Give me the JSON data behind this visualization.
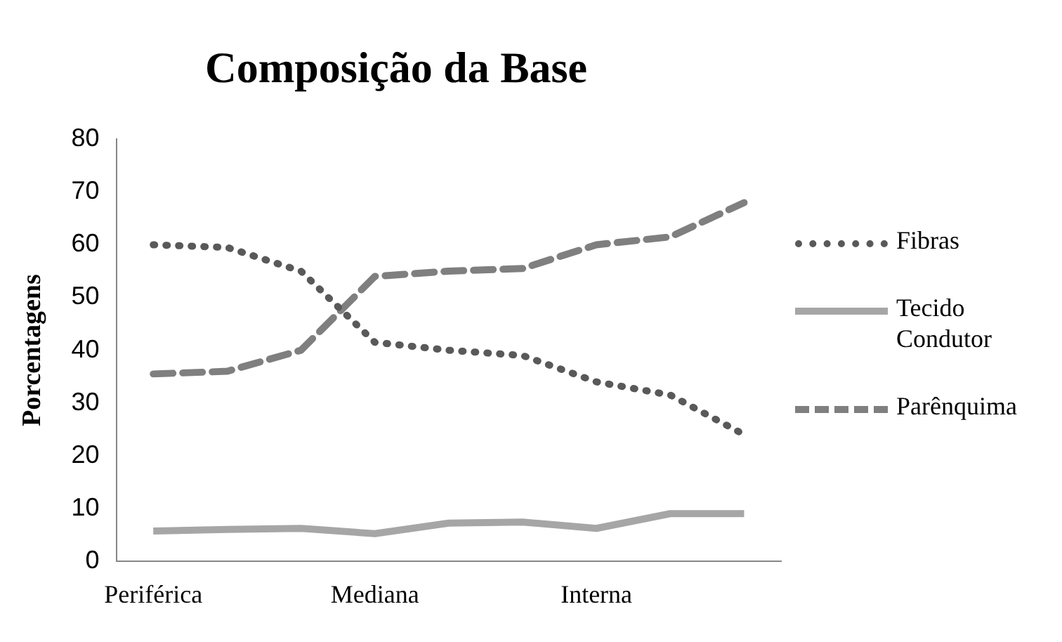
{
  "chart_data": {
    "type": "line",
    "title": "Composição da Base",
    "ylabel": "Porcentagens",
    "categories": [
      "Periférica",
      null,
      null,
      "Mediana",
      null,
      null,
      "Interna",
      null,
      null
    ],
    "series": [
      {
        "name": "Fibras",
        "color": "#595959",
        "line_style": "dotted",
        "values": [
          60,
          59.5,
          55,
          41.5,
          40,
          39,
          34,
          31.5,
          24
        ]
      },
      {
        "name": "Tecido Condutor",
        "color": "#a6a6a6",
        "line_style": "solid",
        "values": [
          5.7,
          6,
          6.2,
          5.2,
          7.2,
          7.4,
          6.2,
          9,
          9
        ]
      },
      {
        "name": "Parênquima",
        "color": "#7f7f7f",
        "line_style": "dashed",
        "values": [
          35.5,
          36,
          40,
          54,
          55,
          55.5,
          60,
          61.5,
          68
        ]
      }
    ],
    "ylim": [
      0,
      80
    ],
    "yticks": [
      0,
      10,
      20,
      30,
      40,
      50,
      60,
      70,
      80
    ],
    "grid": false,
    "legend": "right",
    "marker": "none"
  }
}
